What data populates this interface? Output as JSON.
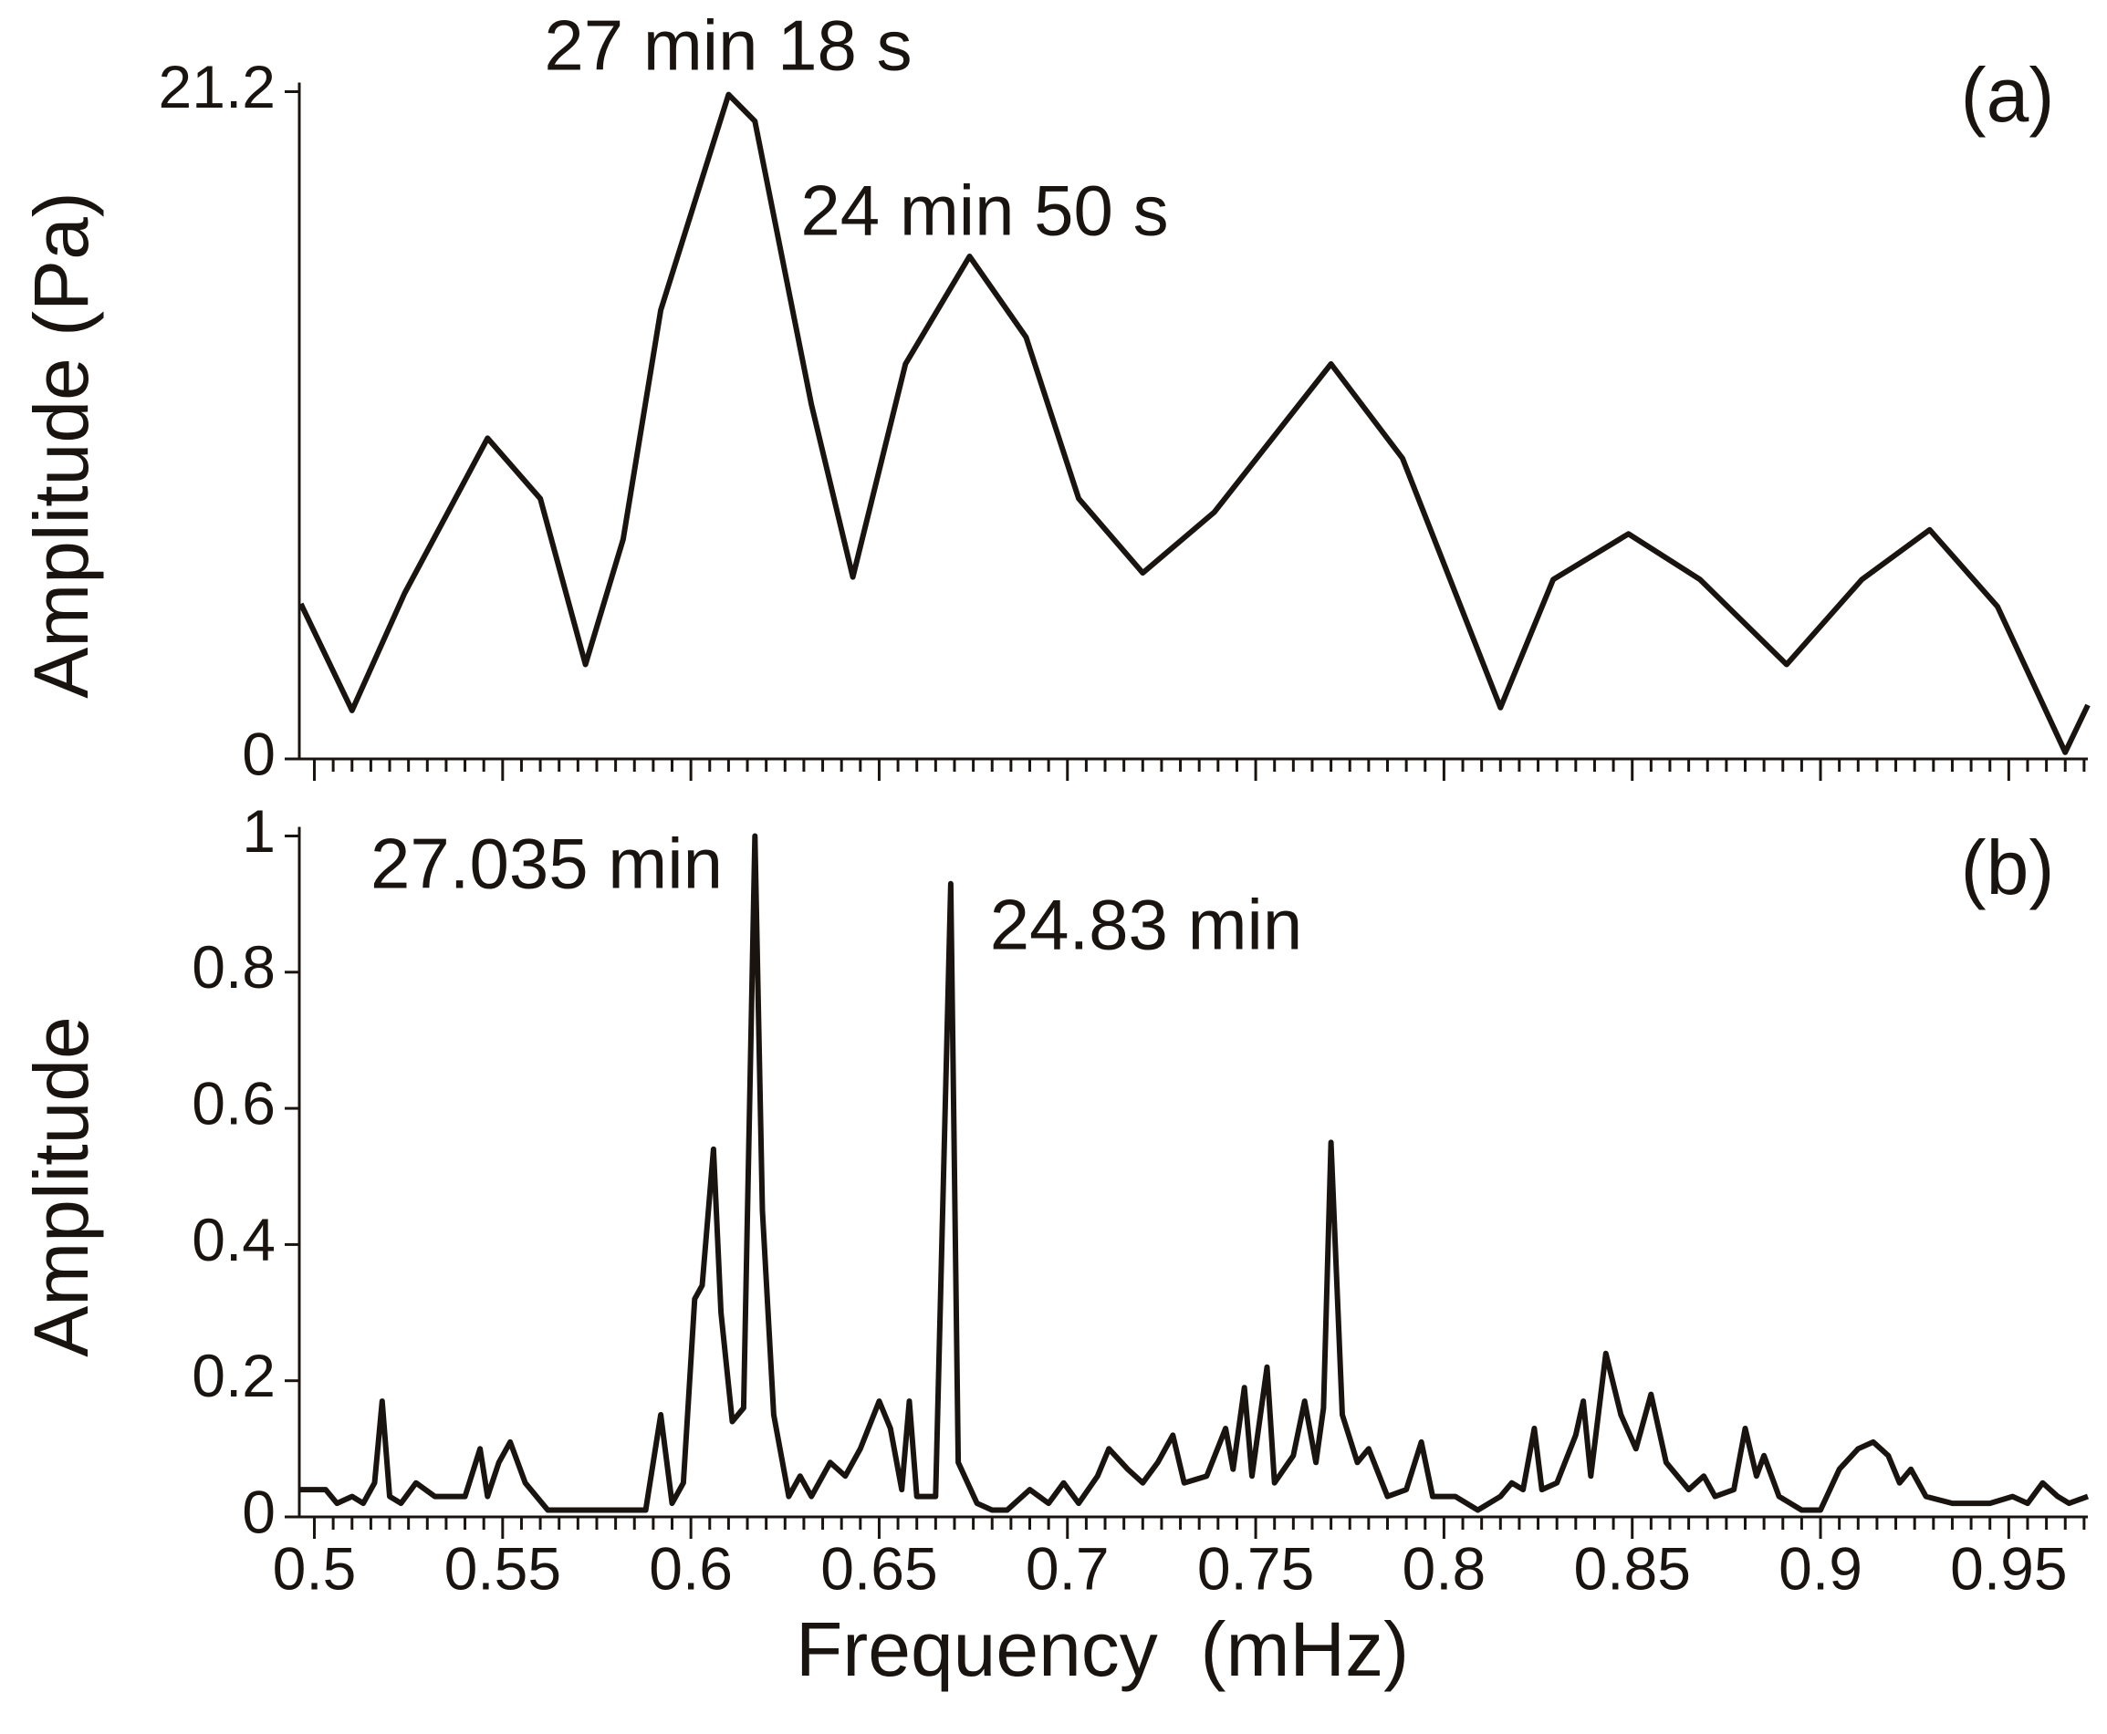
{
  "chart_data": [
    {
      "type": "line",
      "panel_label": "(a)",
      "ylabel": "Amplitude (Pa)",
      "annotations": [
        "27 min 18 s",
        "24 min 50 s"
      ],
      "xlim": [
        0.496,
        0.971
      ],
      "ylim": [
        0,
        21.2
      ],
      "yticks": [
        0,
        21.2
      ],
      "color": "#1a1410",
      "x": [
        0.4964,
        0.51,
        0.524,
        0.546,
        0.56,
        0.572,
        0.582,
        0.592,
        0.61,
        0.617,
        0.632,
        0.643,
        0.657,
        0.674,
        0.689,
        0.703,
        0.72,
        0.739,
        0.77,
        0.789,
        0.815,
        0.829,
        0.849,
        0.868,
        0.891,
        0.911,
        0.929,
        0.947,
        0.965,
        0.971
      ],
      "values": [
        4.93,
        1.54,
        5.27,
        10.19,
        8.27,
        3.0,
        6.98,
        14.26,
        21.11,
        20.26,
        11.26,
        5.78,
        12.55,
        15.97,
        13.4,
        8.27,
        5.91,
        7.84,
        12.55,
        9.55,
        1.63,
        5.7,
        7.15,
        5.7,
        3.0,
        5.7,
        7.28,
        4.84,
        0.21,
        1.71
      ]
    },
    {
      "type": "line",
      "panel_label": "(b)",
      "ylabel": "Amplitude",
      "xlabel": "Frequency  (mHz)",
      "annotations": [
        "27.035 min",
        "24.83 min"
      ],
      "xlim": [
        0.496,
        0.971
      ],
      "ylim": [
        0,
        1
      ],
      "xticks": [
        0.5,
        0.55,
        0.6,
        0.65,
        0.7,
        0.75,
        0.8,
        0.85,
        0.9,
        0.95
      ],
      "yticks": [
        0,
        0.2,
        0.4,
        0.6,
        0.8,
        1
      ],
      "color": "#1a1410",
      "x": [
        0.496,
        0.503,
        0.506,
        0.51,
        0.513,
        0.516,
        0.518,
        0.52,
        0.523,
        0.527,
        0.532,
        0.54,
        0.544,
        0.546,
        0.549,
        0.552,
        0.556,
        0.562,
        0.575,
        0.588,
        0.592,
        0.595,
        0.598,
        0.601,
        0.603,
        0.606,
        0.608,
        0.611,
        0.614,
        0.617,
        0.619,
        0.622,
        0.626,
        0.629,
        0.632,
        0.637,
        0.641,
        0.645,
        0.65,
        0.653,
        0.656,
        0.658,
        0.66,
        0.665,
        0.669,
        0.671,
        0.676,
        0.68,
        0.684,
        0.69,
        0.695,
        0.699,
        0.703,
        0.708,
        0.711,
        0.716,
        0.72,
        0.724,
        0.728,
        0.731,
        0.737,
        0.742,
        0.744,
        0.747,
        0.749,
        0.753,
        0.755,
        0.76,
        0.763,
        0.766,
        0.768,
        0.77,
        0.773,
        0.777,
        0.78,
        0.785,
        0.79,
        0.794,
        0.797,
        0.803,
        0.809,
        0.815,
        0.818,
        0.821,
        0.824,
        0.826,
        0.83,
        0.835,
        0.837,
        0.839,
        0.843,
        0.847,
        0.851,
        0.855,
        0.859,
        0.865,
        0.869,
        0.872,
        0.877,
        0.88,
        0.883,
        0.885,
        0.889,
        0.895,
        0.9,
        0.905,
        0.91,
        0.914,
        0.918,
        0.921,
        0.924,
        0.928,
        0.935,
        0.945,
        0.951,
        0.955,
        0.959,
        0.963,
        0.966,
        0.971
      ],
      "values": [
        0.04,
        0.04,
        0.02,
        0.03,
        0.02,
        0.05,
        0.17,
        0.03,
        0.02,
        0.05,
        0.03,
        0.03,
        0.1,
        0.03,
        0.08,
        0.11,
        0.05,
        0.01,
        0.01,
        0.01,
        0.15,
        0.02,
        0.05,
        0.32,
        0.34,
        0.54,
        0.3,
        0.14,
        0.16,
        1.0,
        0.45,
        0.15,
        0.03,
        0.06,
        0.03,
        0.08,
        0.06,
        0.1,
        0.17,
        0.13,
        0.04,
        0.17,
        0.03,
        0.03,
        0.93,
        0.08,
        0.02,
        0.01,
        0.01,
        0.04,
        0.02,
        0.05,
        0.02,
        0.06,
        0.1,
        0.07,
        0.05,
        0.08,
        0.12,
        0.05,
        0.06,
        0.13,
        0.07,
        0.19,
        0.06,
        0.22,
        0.05,
        0.09,
        0.17,
        0.08,
        0.16,
        0.55,
        0.15,
        0.08,
        0.1,
        0.03,
        0.04,
        0.11,
        0.03,
        0.03,
        0.01,
        0.03,
        0.05,
        0.04,
        0.13,
        0.04,
        0.05,
        0.12,
        0.17,
        0.06,
        0.24,
        0.15,
        0.1,
        0.18,
        0.08,
        0.04,
        0.06,
        0.03,
        0.04,
        0.13,
        0.06,
        0.09,
        0.03,
        0.01,
        0.01,
        0.07,
        0.1,
        0.11,
        0.09,
        0.05,
        0.07,
        0.03,
        0.02,
        0.02,
        0.03,
        0.02,
        0.05,
        0.03,
        0.02,
        0.03
      ]
    }
  ]
}
